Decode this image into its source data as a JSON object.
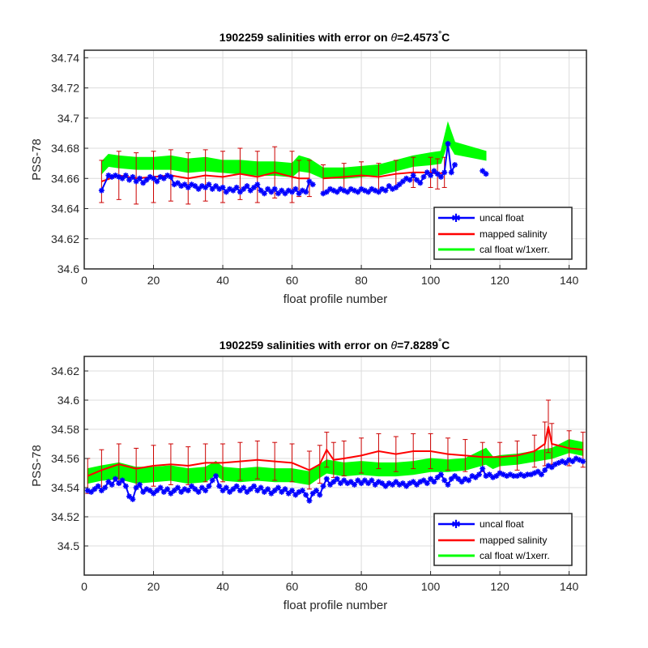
{
  "figure_id": "1902259",
  "chart_data": [
    {
      "type": "line",
      "title": "1902259 salinities with error on θ=2.4573°C",
      "title_parts": {
        "prefix": "1902259 salinities with error on ",
        "theta_symbol": "θ",
        "theta_value": "=2.4573",
        "degree": "°",
        "unit": "C"
      },
      "xlabel": "float profile number",
      "ylabel": "PSS-78",
      "xlim": [
        0,
        145
      ],
      "ylim": [
        34.6,
        34.745
      ],
      "xticks": [
        0,
        20,
        40,
        60,
        80,
        100,
        120,
        140
      ],
      "xticklabels": [
        "0",
        "20",
        "40",
        "60",
        "80",
        "100",
        "120",
        "140"
      ],
      "yticks": [
        34.6,
        34.62,
        34.64,
        34.66,
        34.68,
        34.7,
        34.72,
        34.74
      ],
      "yticklabels": [
        "34.6",
        "34.62",
        "34.64",
        "34.66",
        "34.68",
        "34.7",
        "34.72",
        "34.74"
      ],
      "grid": true,
      "legend_position": "bottom-right",
      "legend": [
        "uncal float",
        "mapped salinity",
        "cal float w/1xerr."
      ],
      "colors": {
        "uncal": "#0000ff",
        "mapped": "#ff0000",
        "err": "#cc0000",
        "cal": "#00ff00"
      },
      "series": [
        {
          "name": "uncal float",
          "x": [
            5,
            7,
            8,
            9,
            10,
            11,
            12,
            13,
            14,
            15,
            16,
            17,
            18,
            19,
            20,
            21,
            22,
            23,
            24,
            25,
            26,
            27,
            28,
            29,
            30,
            31,
            32,
            33,
            34,
            35,
            36,
            37,
            38,
            39,
            40,
            41,
            42,
            43,
            44,
            45,
            46,
            47,
            48,
            49,
            50,
            51,
            52,
            53,
            54,
            55,
            56,
            57,
            58,
            59,
            60,
            61,
            62,
            63,
            64,
            65,
            66,
            null,
            69,
            70,
            71,
            72,
            73,
            74,
            75,
            76,
            77,
            78,
            79,
            80,
            81,
            82,
            83,
            84,
            85,
            86,
            87,
            88,
            89,
            90,
            91,
            92,
            93,
            94,
            95,
            96,
            97,
            98,
            99,
            100,
            101,
            102,
            103,
            104,
            105,
            106,
            107,
            null,
            115,
            116
          ],
          "values": [
            34.652,
            34.662,
            34.661,
            34.662,
            34.661,
            34.66,
            34.662,
            34.659,
            34.661,
            34.658,
            34.66,
            34.657,
            34.659,
            34.661,
            34.66,
            34.658,
            34.661,
            34.66,
            34.662,
            34.661,
            34.656,
            34.657,
            34.655,
            34.656,
            34.654,
            34.656,
            34.655,
            34.653,
            34.655,
            34.654,
            34.656,
            34.653,
            34.655,
            34.653,
            34.654,
            34.651,
            34.653,
            34.652,
            34.654,
            34.651,
            34.653,
            34.655,
            34.652,
            34.654,
            34.656,
            34.652,
            34.65,
            34.653,
            34.651,
            34.653,
            34.65,
            34.652,
            34.65,
            34.652,
            34.651,
            34.653,
            34.65,
            34.652,
            34.651,
            34.658,
            34.656,
            null,
            34.65,
            34.651,
            34.653,
            34.652,
            34.651,
            34.653,
            34.652,
            34.651,
            34.653,
            34.652,
            34.651,
            34.653,
            34.652,
            34.651,
            34.653,
            34.652,
            34.651,
            34.653,
            34.652,
            34.655,
            34.653,
            34.654,
            34.656,
            34.658,
            34.66,
            34.659,
            34.662,
            34.659,
            34.657,
            34.661,
            34.664,
            34.662,
            34.665,
            34.663,
            34.661,
            34.664,
            34.683,
            34.664,
            34.669,
            null,
            34.665,
            34.663
          ]
        },
        {
          "name": "mapped salinity",
          "x": [
            5,
            10,
            15,
            20,
            25,
            30,
            35,
            40,
            45,
            50,
            55,
            60,
            62,
            65,
            null,
            69,
            75,
            80,
            85,
            90,
            95,
            100,
            102,
            104
          ],
          "values": [
            34.658,
            34.662,
            34.66,
            34.661,
            34.662,
            34.66,
            34.662,
            34.661,
            34.663,
            34.661,
            34.664,
            34.661,
            34.66,
            34.66,
            null,
            34.66,
            34.661,
            34.662,
            34.661,
            34.663,
            34.664,
            34.664,
            34.663,
            34.664
          ],
          "errors": [
            0.014,
            0.016,
            0.017,
            0.017,
            0.017,
            0.017,
            0.017,
            0.017,
            0.017,
            0.017,
            0.017,
            0.017,
            0.012,
            0.012,
            null,
            0.009,
            0.009,
            0.009,
            0.009,
            0.009,
            0.01,
            0.01,
            0.01,
            0.01
          ]
        },
        {
          "name": "cal float w/1xerr.",
          "x": [
            5,
            7,
            10,
            15,
            20,
            25,
            30,
            35,
            40,
            45,
            50,
            55,
            60,
            62,
            65,
            69,
            75,
            80,
            85,
            90,
            95,
            100,
            103,
            105,
            107,
            116
          ],
          "upper": [
            34.671,
            34.676,
            34.675,
            34.674,
            34.674,
            34.675,
            34.673,
            34.674,
            34.672,
            34.672,
            34.671,
            34.671,
            34.67,
            34.675,
            34.673,
            34.667,
            34.667,
            34.668,
            34.669,
            34.672,
            34.675,
            34.677,
            34.678,
            34.697,
            34.684,
            34.678
          ],
          "lower": [
            34.663,
            34.668,
            34.667,
            34.666,
            34.666,
            34.666,
            34.664,
            34.665,
            34.664,
            34.663,
            34.662,
            34.662,
            34.661,
            34.665,
            34.664,
            34.66,
            34.66,
            34.661,
            34.662,
            34.665,
            34.668,
            34.669,
            34.67,
            34.684,
            34.676,
            34.672
          ]
        }
      ]
    },
    {
      "type": "line",
      "title": "1902259 salinities with error on θ=7.8289°C",
      "title_parts": {
        "prefix": "1902259 salinities with error on ",
        "theta_symbol": "θ",
        "theta_value": "=7.8289",
        "degree": "°",
        "unit": "C"
      },
      "xlabel": "float profile number",
      "ylabel": "PSS-78",
      "xlim": [
        0,
        145
      ],
      "ylim": [
        34.48,
        34.63
      ],
      "xticks": [
        0,
        20,
        40,
        60,
        80,
        100,
        120,
        140
      ],
      "xticklabels": [
        "0",
        "20",
        "40",
        "60",
        "80",
        "100",
        "120",
        "140"
      ],
      "yticks": [
        34.5,
        34.52,
        34.54,
        34.56,
        34.58,
        34.6,
        34.62
      ],
      "yticklabels": [
        "34.5",
        "34.52",
        "34.54",
        "34.56",
        "34.58",
        "34.6",
        "34.62"
      ],
      "grid": true,
      "legend_position": "bottom-right",
      "legend": [
        "uncal float",
        "mapped salinity",
        "cal float w/1xerr."
      ],
      "colors": {
        "uncal": "#0000ff",
        "mapped": "#ff0000",
        "err": "#cc0000",
        "cal": "#00ff00"
      },
      "series": [
        {
          "name": "uncal float",
          "x": [
            1,
            2,
            3,
            4,
            5,
            6,
            7,
            8,
            9,
            10,
            11,
            12,
            13,
            14,
            15,
            16,
            17,
            18,
            19,
            20,
            21,
            22,
            23,
            24,
            25,
            26,
            27,
            28,
            29,
            30,
            31,
            32,
            33,
            34,
            35,
            36,
            37,
            38,
            39,
            40,
            41,
            42,
            43,
            44,
            45,
            46,
            47,
            48,
            49,
            50,
            51,
            52,
            53,
            54,
            55,
            56,
            57,
            58,
            59,
            60,
            61,
            62,
            63,
            64,
            65,
            66,
            67,
            68,
            69,
            70,
            71,
            72,
            73,
            74,
            75,
            76,
            77,
            78,
            79,
            80,
            81,
            82,
            83,
            84,
            85,
            86,
            87,
            88,
            89,
            90,
            91,
            92,
            93,
            94,
            95,
            96,
            97,
            98,
            99,
            100,
            101,
            102,
            103,
            104,
            105,
            106,
            107,
            108,
            109,
            110,
            111,
            112,
            113,
            114,
            115,
            116,
            117,
            118,
            119,
            120,
            121,
            122,
            123,
            124,
            125,
            126,
            127,
            128,
            129,
            130,
            131,
            132,
            133,
            134,
            135,
            136,
            137,
            138,
            139,
            140,
            141,
            142,
            143,
            144
          ],
          "values": [
            34.538,
            34.537,
            34.539,
            34.541,
            34.538,
            34.54,
            34.544,
            34.542,
            34.546,
            34.543,
            34.545,
            34.541,
            34.534,
            34.532,
            34.54,
            34.542,
            34.537,
            34.539,
            34.538,
            34.536,
            34.538,
            34.54,
            34.537,
            34.539,
            34.536,
            34.538,
            34.54,
            34.537,
            34.539,
            34.538,
            34.541,
            34.539,
            34.537,
            34.54,
            34.538,
            34.541,
            34.545,
            34.548,
            34.541,
            34.538,
            34.54,
            34.537,
            34.539,
            34.541,
            34.538,
            34.54,
            34.537,
            34.539,
            34.541,
            34.538,
            34.54,
            34.537,
            34.539,
            34.536,
            34.538,
            34.54,
            34.537,
            34.539,
            34.536,
            34.538,
            34.535,
            34.537,
            34.538,
            34.535,
            34.531,
            34.536,
            34.538,
            34.535,
            34.541,
            34.546,
            34.542,
            34.544,
            34.546,
            34.543,
            34.545,
            34.543,
            34.544,
            34.542,
            34.545,
            34.543,
            34.545,
            34.543,
            34.545,
            34.542,
            34.544,
            34.543,
            34.541,
            34.543,
            34.542,
            34.544,
            34.542,
            34.543,
            34.541,
            34.543,
            34.544,
            34.542,
            34.544,
            34.545,
            34.543,
            34.546,
            34.544,
            34.547,
            34.549,
            34.545,
            34.542,
            34.546,
            34.548,
            34.546,
            34.544,
            34.546,
            34.545,
            34.548,
            34.547,
            34.549,
            34.553,
            34.548,
            34.549,
            34.547,
            34.548,
            34.55,
            34.549,
            34.548,
            34.549,
            34.548,
            34.548,
            34.549,
            34.548,
            34.549,
            34.549,
            34.55,
            34.551,
            34.549,
            34.552,
            34.555,
            34.554,
            34.556,
            34.557,
            34.558,
            34.557,
            34.559,
            34.558,
            34.56,
            34.559,
            34.558
          ]
        },
        {
          "name": "mapped salinity",
          "x": [
            1,
            5,
            10,
            15,
            20,
            25,
            30,
            35,
            40,
            45,
            50,
            55,
            60,
            65,
            68,
            70,
            72,
            75,
            80,
            85,
            90,
            95,
            100,
            105,
            110,
            115,
            120,
            125,
            130,
            133,
            134,
            135,
            140,
            144
          ],
          "values": [
            34.548,
            34.552,
            34.556,
            34.553,
            34.555,
            34.556,
            34.555,
            34.557,
            34.557,
            34.558,
            34.559,
            34.558,
            34.557,
            34.552,
            34.556,
            34.566,
            34.559,
            34.56,
            34.562,
            34.565,
            34.563,
            34.565,
            34.565,
            34.563,
            34.562,
            34.561,
            34.561,
            34.562,
            34.565,
            34.57,
            34.582,
            34.57,
            34.567,
            34.566
          ],
          "errors": [
            0.012,
            0.014,
            0.014,
            0.014,
            0.014,
            0.014,
            0.013,
            0.013,
            0.013,
            0.013,
            0.013,
            0.013,
            0.013,
            0.013,
            0.013,
            0.012,
            0.012,
            0.012,
            0.012,
            0.012,
            0.012,
            0.012,
            0.012,
            0.011,
            0.011,
            0.01,
            0.01,
            0.01,
            0.011,
            0.015,
            0.018,
            0.014,
            0.012,
            0.012
          ]
        },
        {
          "name": "cal float w/1xerr.",
          "x": [
            1,
            5,
            10,
            15,
            20,
            25,
            30,
            35,
            38,
            40,
            45,
            50,
            55,
            60,
            65,
            68,
            70,
            75,
            80,
            85,
            90,
            95,
            100,
            105,
            110,
            116,
            118,
            120,
            125,
            130,
            135,
            140,
            144
          ],
          "upper": [
            34.553,
            34.555,
            34.557,
            34.554,
            34.554,
            34.555,
            34.553,
            34.554,
            34.558,
            34.554,
            34.553,
            34.554,
            34.553,
            34.553,
            34.551,
            34.556,
            34.559,
            34.557,
            34.558,
            34.557,
            34.557,
            34.558,
            34.56,
            34.559,
            34.56,
            34.567,
            34.561,
            34.562,
            34.563,
            34.565,
            34.567,
            34.573,
            34.571
          ],
          "lower": [
            34.543,
            34.545,
            34.546,
            34.543,
            34.544,
            34.545,
            34.543,
            34.544,
            34.549,
            34.545,
            34.544,
            34.545,
            34.544,
            34.544,
            34.542,
            34.547,
            34.55,
            34.548,
            34.549,
            34.548,
            34.548,
            34.549,
            34.551,
            34.551,
            34.552,
            34.556,
            34.553,
            34.555,
            34.556,
            34.558,
            34.56,
            34.564,
            34.562
          ]
        }
      ]
    }
  ]
}
